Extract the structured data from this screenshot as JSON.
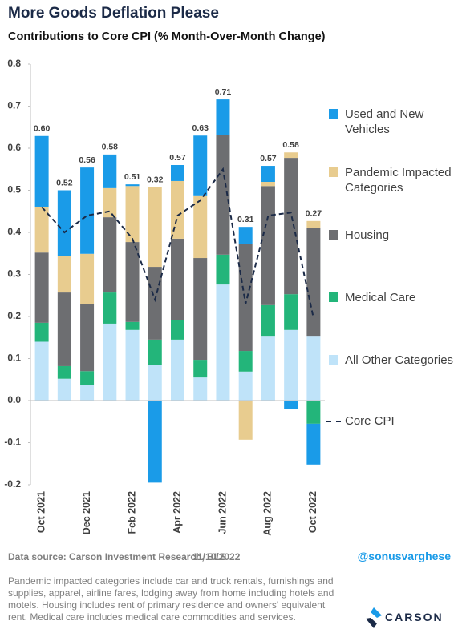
{
  "title": "More Goods Deflation Please",
  "chart_data": {
    "type": "stacked_bar_line",
    "subtitle": "Contributions to Core CPI (% Month-Over-Month Change)",
    "categories": [
      "Oct 2021",
      null,
      "Dec 2021",
      null,
      "Feb 2022",
      null,
      "Apr 2022",
      null,
      "Jun 2022",
      null,
      "Aug 2022",
      null,
      "Oct 2022"
    ],
    "series": [
      {
        "name": "All Other Categories",
        "color": "#bfe3f9",
        "values": [
          0.14,
          0.052,
          0.038,
          0.183,
          0.168,
          0.084,
          0.145,
          0.055,
          0.276,
          0.069,
          0.154,
          0.168,
          0.154
        ]
      },
      {
        "name": "Medical Care",
        "color": "#23b57a",
        "values": [
          0.045,
          0.03,
          0.032,
          0.074,
          0.019,
          0.061,
          0.047,
          0.042,
          0.071,
          0.049,
          0.073,
          0.085,
          -0.055
        ]
      },
      {
        "name": "Housing",
        "color": "#6d6e71",
        "values": [
          0.167,
          0.175,
          0.16,
          0.179,
          0.19,
          0.173,
          0.193,
          0.242,
          0.285,
          0.255,
          0.283,
          0.324,
          0.256
        ]
      },
      {
        "name": "Pandemic Impacted Categories",
        "color": "#e8cc8f",
        "values": [
          0.109,
          0.086,
          0.119,
          0.069,
          0.133,
          0.189,
          0.137,
          0.149,
          0,
          -0.093,
          0.01,
          0.013,
          0.017
        ]
      },
      {
        "name": "Used and New Vehicles",
        "color": "#1a9be8",
        "values": [
          0.168,
          0.157,
          0.205,
          0.08,
          0.004,
          -0.195,
          0.038,
          0.142,
          0.084,
          0.04,
          0.038,
          -0.02,
          -0.097
        ]
      }
    ],
    "line_series": {
      "name": "Core CPI",
      "color": "#1b2a47",
      "values": [
        0.46,
        0.4,
        0.44,
        0.45,
        0.385,
        0.24,
        0.44,
        0.476,
        0.55,
        0.23,
        0.44,
        0.447,
        0.196
      ]
    },
    "total_labels": {
      "values": [
        0.6,
        0.52,
        0.56,
        0.58,
        0.51,
        0.32,
        0.57,
        0.63,
        0.71,
        0.31,
        0.57,
        0.58,
        0.27
      ],
      "value_labels": [
        "0.60",
        "0.52",
        "0.56",
        "0.58",
        "0.51",
        "0.32",
        "0.57",
        "0.63",
        "0.71",
        "0.31",
        "0.57",
        "0.58",
        "0.27"
      ]
    },
    "ylim": [
      -0.2,
      0.8
    ],
    "yticks": [
      -0.2,
      -0.1,
      {
        "value": 0,
        "label": "0.0"
      },
      0.1,
      0.2,
      0.3,
      0.4,
      0.5,
      0.6,
      0.7,
      0.8
    ],
    "grid": false
  },
  "footer": {
    "source": "Data source: Carson Investment Research, BLS",
    "date": "11/10/2022",
    "handle": "@sonusvarghese",
    "note": "Pandemic impacted categories include car and truck rentals, furnishings and supplies, apparel, airline fares, lodging away from home including hotels and motels. Housing includes rent of primary residence and owners' equivalent rent. Medical care includes medical care commodities and services.",
    "logo": "CARSON"
  }
}
